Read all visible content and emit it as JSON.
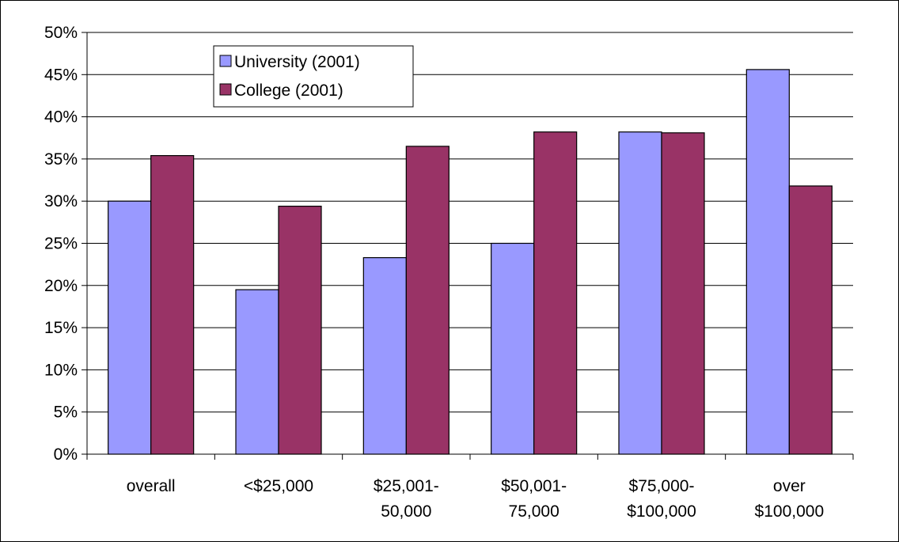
{
  "chart_data": {
    "type": "bar",
    "categories": [
      "overall",
      "<$25,000",
      "$25,001-\n50,000",
      "$50,001-\n75,000",
      "$75,000-\n$100,000",
      "over\n$100,000"
    ],
    "series": [
      {
        "name": "University (2001)",
        "color": "#9999ff",
        "values": [
          30.0,
          19.5,
          23.3,
          25.0,
          38.2,
          45.6
        ]
      },
      {
        "name": "College (2001)",
        "color": "#993366",
        "values": [
          35.4,
          29.4,
          36.5,
          38.2,
          38.1,
          31.8
        ]
      }
    ],
    "ylim": [
      0,
      50
    ],
    "yticks": [
      {
        "value": 0,
        "label": "0%"
      },
      {
        "value": 5,
        "label": "5%"
      },
      {
        "value": 10,
        "label": "10%"
      },
      {
        "value": 15,
        "label": "15%"
      },
      {
        "value": 20,
        "label": "20%"
      },
      {
        "value": 25,
        "label": "25%"
      },
      {
        "value": 30,
        "label": "30%"
      },
      {
        "value": 35,
        "label": "35%"
      },
      {
        "value": 40,
        "label": "40%"
      },
      {
        "value": 45,
        "label": "45%"
      },
      {
        "value": 50,
        "label": "50%"
      }
    ],
    "grid": true,
    "legend": "top-left"
  }
}
